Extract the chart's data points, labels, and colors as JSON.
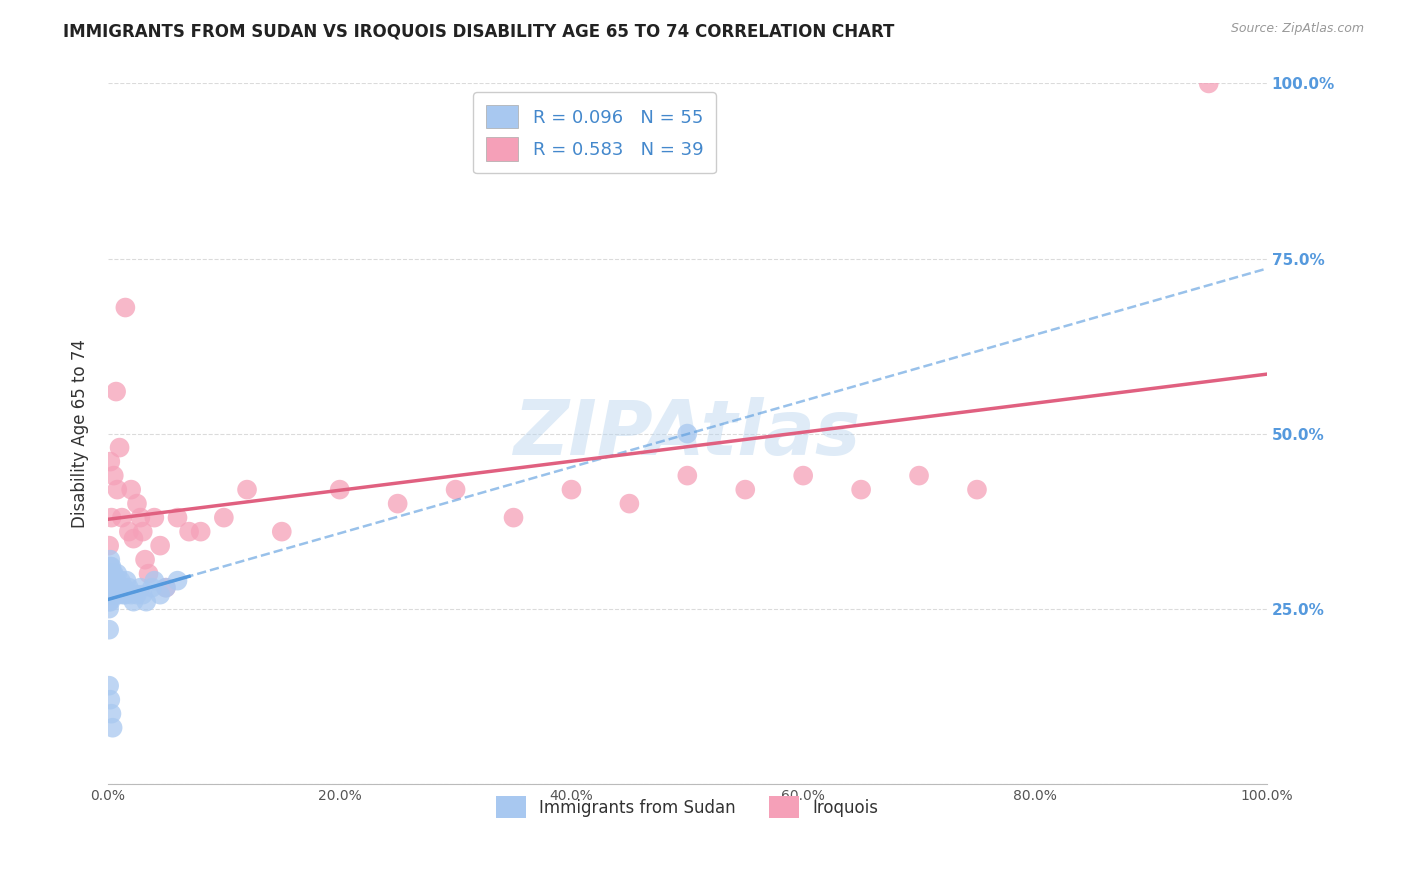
{
  "title": "IMMIGRANTS FROM SUDAN VS IROQUOIS DISABILITY AGE 65 TO 74 CORRELATION CHART",
  "source": "Source: ZipAtlas.com",
  "ylabel": "Disability Age 65 to 74",
  "legend_label1": "Immigrants from Sudan",
  "legend_label2": "Iroquois",
  "r1": 0.096,
  "n1": 55,
  "r2": 0.583,
  "n2": 39,
  "color1": "#a8c8f0",
  "color2": "#f5a0b8",
  "line_color1": "#5599dd",
  "line_color2": "#e06080",
  "background_color": "#ffffff",
  "grid_color": "#cccccc",
  "watermark": "ZIPAtlas",
  "xlim": [
    0,
    1.0
  ],
  "ylim": [
    0,
    1.0
  ],
  "xticks": [
    0.0,
    0.2,
    0.4,
    0.6,
    0.8,
    1.0
  ],
  "yticks": [
    0.0,
    0.25,
    0.5,
    0.75,
    1.0
  ],
  "xticklabels": [
    "0.0%",
    "20.0%",
    "40.0%",
    "60.0%",
    "80.0%",
    "100.0%"
  ],
  "yticklabels": [
    "",
    "25.0%",
    "50.0%",
    "75.0%",
    "100.0%"
  ],
  "blue_x": [
    0.001,
    0.001,
    0.001,
    0.001,
    0.001,
    0.002,
    0.002,
    0.002,
    0.002,
    0.002,
    0.002,
    0.002,
    0.003,
    0.003,
    0.003,
    0.003,
    0.003,
    0.003,
    0.003,
    0.004,
    0.004,
    0.004,
    0.004,
    0.005,
    0.005,
    0.005,
    0.006,
    0.006,
    0.007,
    0.008,
    0.009,
    0.01,
    0.011,
    0.012,
    0.013,
    0.014,
    0.015,
    0.016,
    0.018,
    0.02,
    0.022,
    0.025,
    0.028,
    0.03,
    0.033,
    0.038,
    0.04,
    0.045,
    0.05,
    0.06,
    0.001,
    0.002,
    0.003,
    0.004,
    0.5
  ],
  "blue_y": [
    0.28,
    0.3,
    0.25,
    0.26,
    0.22,
    0.3,
    0.29,
    0.28,
    0.27,
    0.26,
    0.32,
    0.31,
    0.29,
    0.3,
    0.28,
    0.27,
    0.31,
    0.29,
    0.28,
    0.28,
    0.3,
    0.29,
    0.27,
    0.28,
    0.29,
    0.3,
    0.29,
    0.28,
    0.29,
    0.3,
    0.27,
    0.28,
    0.29,
    0.28,
    0.27,
    0.28,
    0.27,
    0.29,
    0.28,
    0.27,
    0.26,
    0.27,
    0.28,
    0.27,
    0.26,
    0.28,
    0.29,
    0.27,
    0.28,
    0.29,
    0.14,
    0.12,
    0.1,
    0.08,
    0.5
  ],
  "pink_x": [
    0.001,
    0.002,
    0.003,
    0.005,
    0.007,
    0.008,
    0.01,
    0.012,
    0.015,
    0.018,
    0.02,
    0.022,
    0.025,
    0.028,
    0.03,
    0.032,
    0.035,
    0.04,
    0.045,
    0.05,
    0.06,
    0.07,
    0.08,
    0.1,
    0.12,
    0.15,
    0.2,
    0.25,
    0.3,
    0.35,
    0.4,
    0.45,
    0.5,
    0.55,
    0.6,
    0.65,
    0.7,
    0.75,
    0.95
  ],
  "pink_y": [
    0.34,
    0.46,
    0.38,
    0.44,
    0.56,
    0.42,
    0.48,
    0.38,
    0.68,
    0.36,
    0.42,
    0.35,
    0.4,
    0.38,
    0.36,
    0.32,
    0.3,
    0.38,
    0.34,
    0.28,
    0.38,
    0.36,
    0.36,
    0.38,
    0.42,
    0.36,
    0.42,
    0.4,
    0.42,
    0.38,
    0.42,
    0.4,
    0.44,
    0.42,
    0.44,
    0.42,
    0.44,
    0.42,
    1.0
  ]
}
